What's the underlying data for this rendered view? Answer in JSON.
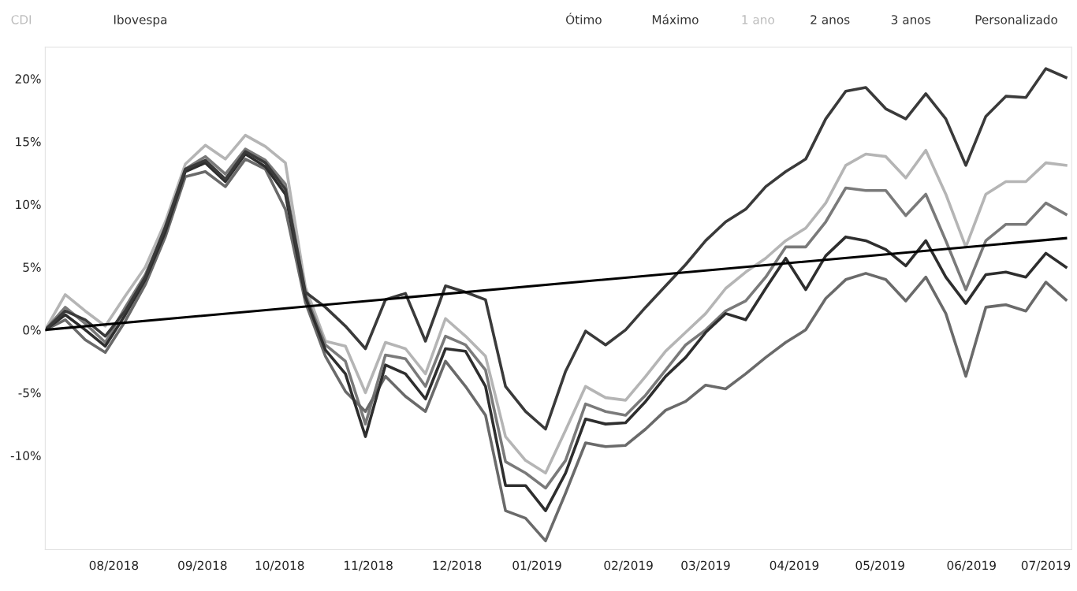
{
  "chart_data": {
    "type": "line",
    "x": [
      "2018-07-20",
      "2018-07-27",
      "2018-08-03",
      "2018-08-10",
      "2018-08-17",
      "2018-08-24",
      "2018-08-31",
      "2018-09-07",
      "2018-09-14",
      "2018-09-21",
      "2018-09-28",
      "2018-10-05",
      "2018-10-12",
      "2018-10-19",
      "2018-10-26",
      "2018-11-02",
      "2018-11-09",
      "2018-11-16",
      "2018-11-23",
      "2018-11-30",
      "2018-12-07",
      "2018-12-14",
      "2018-12-21",
      "2018-12-28",
      "2019-01-04",
      "2019-01-11",
      "2019-01-18",
      "2019-01-25",
      "2019-02-01",
      "2019-02-08",
      "2019-02-15",
      "2019-02-22",
      "2019-03-01",
      "2019-03-08",
      "2019-03-15",
      "2019-03-22",
      "2019-03-29",
      "2019-04-05",
      "2019-04-12",
      "2019-04-19",
      "2019-04-26",
      "2019-05-03",
      "2019-05-10",
      "2019-05-17",
      "2019-05-24",
      "2019-05-31",
      "2019-06-07",
      "2019-06-14",
      "2019-06-21",
      "2019-06-28",
      "2019-07-05",
      "2019-07-12"
    ],
    "series": [
      {
        "color": "#b5b5b5",
        "values": [
          0,
          2.8,
          1.5,
          0.3,
          2.7,
          5.0,
          8.6,
          13.2,
          14.7,
          13.6,
          15.5,
          14.6,
          13.3,
          3.4,
          -0.9,
          -1.3,
          -5.0,
          -1.0,
          -1.5,
          -3.5,
          0.9,
          -0.5,
          -2.1,
          -8.5,
          -10.4,
          -11.4,
          -8.0,
          -4.5,
          -5.4,
          -5.6,
          -3.7,
          -1.7,
          -0.2,
          1.3,
          3.3,
          4.6,
          5.7,
          7.1,
          8.1,
          10.1,
          13.1,
          14.0,
          13.8,
          12.1,
          14.3,
          10.8,
          6.6,
          10.8,
          11.8,
          11.8,
          13.3,
          13.1
        ]
      },
      {
        "color": "#7a7a7a",
        "values": [
          0,
          1.8,
          0.5,
          -1.0,
          1.8,
          4.4,
          8.0,
          12.8,
          13.8,
          12.4,
          14.4,
          13.5,
          11.6,
          2.8,
          -1.2,
          -2.5,
          -7.5,
          -2.0,
          -2.3,
          -4.5,
          -0.5,
          -1.2,
          -3.2,
          -10.5,
          -11.4,
          -12.6,
          -10.4,
          -5.9,
          -6.5,
          -6.8,
          -5.2,
          -3.2,
          -1.2,
          0.0,
          1.5,
          2.3,
          4.2,
          6.6,
          6.6,
          8.6,
          11.3,
          11.1,
          11.1,
          9.1,
          10.8,
          7.1,
          3.2,
          7.1,
          8.4,
          8.4,
          10.1,
          9.2
        ]
      },
      {
        "color": "#6a6a6a",
        "values": [
          0,
          0.8,
          -0.8,
          -1.8,
          0.7,
          3.6,
          7.4,
          12.2,
          12.6,
          11.4,
          13.6,
          12.8,
          9.6,
          2.2,
          -2.1,
          -4.9,
          -6.5,
          -3.7,
          -5.3,
          -6.5,
          -2.5,
          -4.5,
          -6.8,
          -14.4,
          -15.0,
          -16.8,
          -13.0,
          -9.0,
          -9.3,
          -9.2,
          -7.9,
          -6.4,
          -5.7,
          -4.4,
          -4.7,
          -3.5,
          -2.2,
          -1.0,
          0.0,
          2.5,
          4.0,
          4.5,
          4.0,
          2.3,
          4.2,
          1.3,
          -3.7,
          1.8,
          2.0,
          1.5,
          3.8,
          2.4
        ]
      },
      {
        "color": "#2e2e2e",
        "values": [
          0,
          1.2,
          0.0,
          -1.3,
          1.2,
          4.0,
          7.8,
          12.6,
          13.3,
          11.8,
          14.0,
          13.0,
          10.8,
          2.6,
          -1.6,
          -3.5,
          -8.5,
          -2.8,
          -3.5,
          -5.5,
          -1.5,
          -1.7,
          -4.5,
          -12.4,
          -12.4,
          -14.4,
          -11.4,
          -7.1,
          -7.5,
          -7.4,
          -5.7,
          -3.7,
          -2.2,
          -0.2,
          1.3,
          0.8,
          3.3,
          5.7,
          3.2,
          5.9,
          7.4,
          7.1,
          6.4,
          5.1,
          7.1,
          4.2,
          2.1,
          4.4,
          4.6,
          4.2,
          6.1,
          5.0
        ]
      },
      {
        "color": "#3a3a3a",
        "values": [
          0,
          1.5,
          0.8,
          -0.5,
          1.5,
          4.2,
          8.2,
          12.8,
          13.5,
          12.0,
          14.2,
          13.3,
          11.2,
          3.0,
          1.8,
          0.3,
          -1.5,
          2.4,
          2.9,
          -0.9,
          3.5,
          3.0,
          2.4,
          -4.5,
          -6.5,
          -7.9,
          -3.3,
          -0.1,
          -1.2,
          0.0,
          1.8,
          3.5,
          5.2,
          7.1,
          8.6,
          9.6,
          11.4,
          12.6,
          13.6,
          16.8,
          19.0,
          19.3,
          17.6,
          16.8,
          18.8,
          16.8,
          13.1,
          17.0,
          18.6,
          18.5,
          20.8,
          20.1
        ]
      },
      {
        "color": "#000000",
        "x": [
          "2018-07-20",
          "2019-07-12"
        ],
        "values": [
          0,
          7.3
        ]
      }
    ],
    "xlim": [
      "2018-07-20",
      "2019-07-14"
    ],
    "xticks": [
      {
        "value": "2018-08-13",
        "label": "08/2018"
      },
      {
        "value": "2018-09-13",
        "label": "09/2018"
      },
      {
        "value": "2018-10-10",
        "label": "10/2018"
      },
      {
        "value": "2018-11-10",
        "label": "11/2018"
      },
      {
        "value": "2018-12-11",
        "label": "12/2018"
      },
      {
        "value": "2019-01-08",
        "label": "01/2019"
      },
      {
        "value": "2019-02-09",
        "label": "02/2019"
      },
      {
        "value": "2019-03-08",
        "label": "03/2019"
      },
      {
        "value": "2019-04-08",
        "label": "04/2019"
      },
      {
        "value": "2019-05-08",
        "label": "05/2019"
      },
      {
        "value": "2019-06-09",
        "label": "06/2019"
      },
      {
        "value": "2019-07-05",
        "label": "07/2019"
      }
    ],
    "ylim": [
      -17.5,
      22.5
    ],
    "yticks": [
      {
        "value": -10,
        "label": "-10%"
      },
      {
        "value": -5,
        "label": "-5%"
      },
      {
        "value": 0,
        "label": "0%"
      },
      {
        "value": 5,
        "label": "5%"
      },
      {
        "value": 10,
        "label": "10%"
      },
      {
        "value": 15,
        "label": "15%"
      },
      {
        "value": 20,
        "label": "20%"
      }
    ],
    "grid": false,
    "marker": "none",
    "line_style": "solid",
    "annotations": [
      "CDI",
      "Ibovespa",
      "Ótimo",
      "Máximo",
      "1 ano",
      "2 anos",
      "3 anos",
      "Personalizado"
    ]
  }
}
